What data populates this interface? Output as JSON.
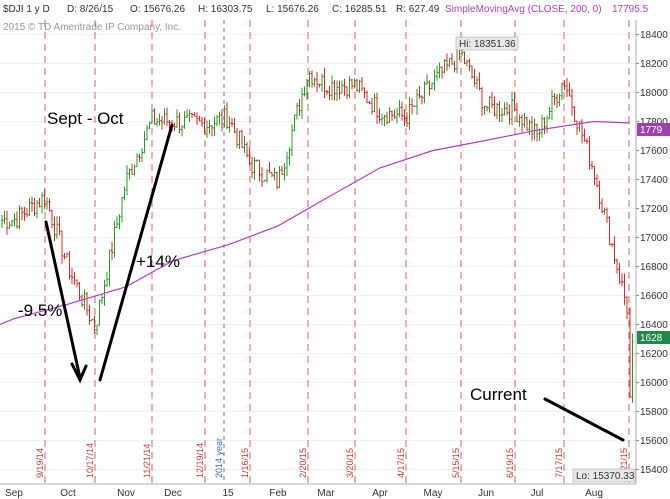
{
  "header": {
    "symbol": "$DJI 1 y D",
    "date": "D: 8/26/15",
    "open": "O: 15676.26",
    "high": "H: 16303.75",
    "low": "L: 15676.26",
    "close": "C: 16285.51",
    "range": "R: 627.49",
    "sma_label": "SimpleMovingAvg (CLOSE, 200, 0)",
    "sma_value": "17795.5",
    "copyright": "2015 © TD Ameritrade IP Company, Inc."
  },
  "colors": {
    "up": "#2a9a2a",
    "down": "#d42a2a",
    "sma": "#b040c0",
    "vline": "#e05050",
    "year_line": "#4070c0",
    "grid": "#e6e6e6",
    "annot": "#000000"
  },
  "chart_data": {
    "type": "candlestick-bar",
    "ylim": [
      15300,
      18500
    ],
    "y_ticks": [
      15400,
      15600,
      15800,
      16000,
      16200,
      16400,
      16600,
      16800,
      17000,
      17200,
      17400,
      17600,
      17800,
      18000,
      18200,
      18400
    ],
    "x_ticks": [
      "Sep",
      "Oct",
      "Nov",
      "Dec",
      "15",
      "Feb",
      "Mar",
      "Apr",
      "May",
      "Jun",
      "Jul",
      "Aug"
    ],
    "option_dates": [
      "9/19/14",
      "10/17/14",
      "11/21/14",
      "12/19/14",
      "1/16/15",
      "2/20/15",
      "3/20/15",
      "4/17/15",
      "5/15/15",
      "6/19/15",
      "7/17/15",
      "8/21/15"
    ],
    "year_marker": "2014 year",
    "close_path": [
      [
        "Sep",
        17120
      ],
      [
        "9/19/14",
        17280
      ],
      [
        "Oct",
        16800
      ],
      [
        "10/17/14",
        16380
      ],
      [
        "Nov",
        17390
      ],
      [
        "11/21/14",
        17810
      ],
      [
        "Dec",
        17800
      ],
      [
        "12/19/14",
        17780
      ],
      [
        "15",
        17830
      ],
      [
        "1/16/15",
        17510
      ],
      [
        "Feb",
        17380
      ],
      [
        "2/20/15",
        18140
      ],
      [
        "Mar",
        18050
      ],
      [
        "3/20/15",
        18050
      ],
      [
        "Apr",
        17870
      ],
      [
        "4/17/15",
        17830
      ],
      [
        "May",
        18070
      ],
      [
        "5/15/15",
        18270
      ],
      [
        "Jun",
        17900
      ],
      [
        "6/19/15",
        17880
      ],
      [
        "Jul",
        17700
      ],
      [
        "7/17/15",
        18090
      ],
      [
        "Aug",
        17460
      ],
      [
        "8/21/15",
        16460
      ]
    ],
    "sma_200": {
      "label": "SimpleMovingAvg (CLOSE, 200, 0)",
      "points": [
        [
          "Sep",
          16440
        ],
        [
          "Oct",
          16540
        ],
        [
          "Nov",
          16660
        ],
        [
          "Dec",
          16840
        ],
        [
          "15",
          16950
        ],
        [
          "Feb",
          17080
        ],
        [
          "Mar",
          17270
        ],
        [
          "Apr",
          17480
        ],
        [
          "May",
          17600
        ],
        [
          "Jun",
          17670
        ],
        [
          "Jul",
          17740
        ],
        [
          "Aug",
          17800
        ]
      ],
      "last_value": "17795"
    },
    "hi_label": "Hi: 18351.36",
    "lo_label": "Lo: 15370.33",
    "last_price_tag": "1628",
    "sma_tag": "1779",
    "annotations": [
      "Sept - Oct",
      "+14%",
      "-9.5%",
      "Current"
    ]
  }
}
